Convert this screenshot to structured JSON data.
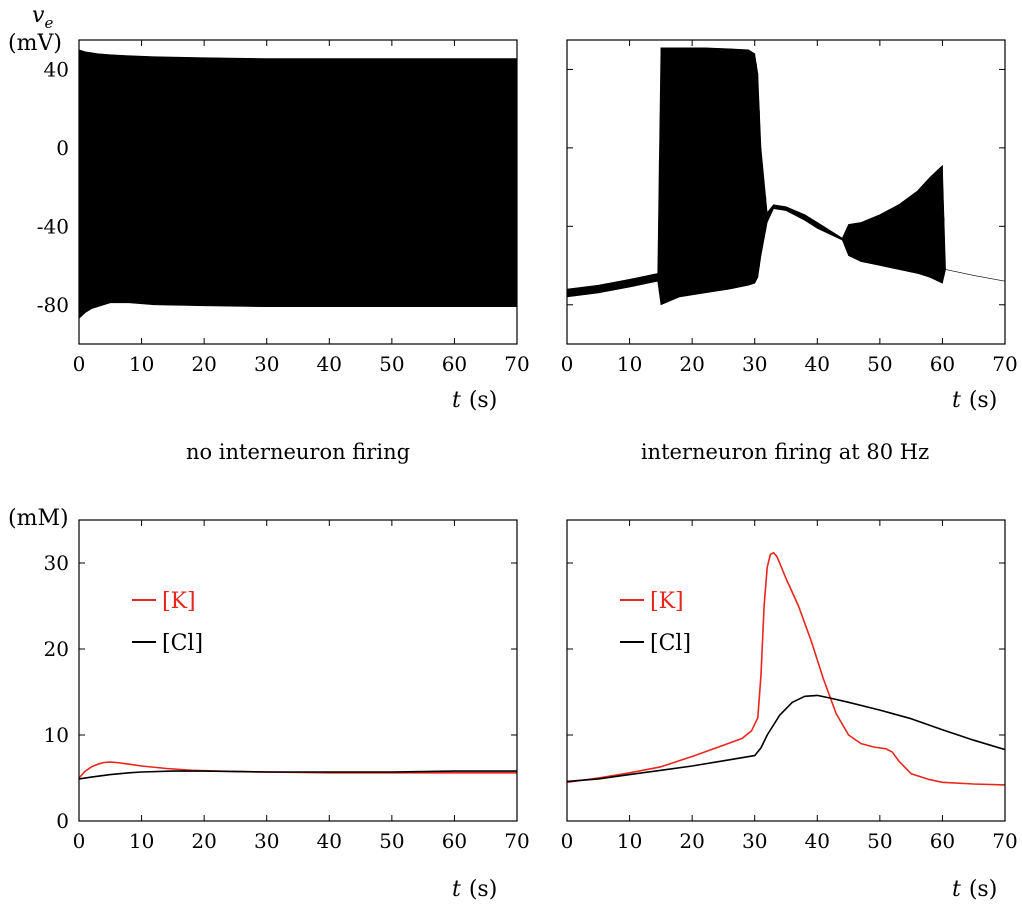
{
  "captions": {
    "left": "no interneuron firing",
    "right": "interneuron firing at 80 Hz"
  },
  "labels": {
    "voltage_var": "v",
    "voltage_sub": "e",
    "voltage_unit": "(mV)",
    "conc_unit": "(mM)",
    "time_var": "t",
    "time_unit": "(s)"
  },
  "colors": {
    "potassium": "#e8261e",
    "chloride": "#000000",
    "voltage": "#000000"
  },
  "chart_data": [
    {
      "id": "voltage-no-firing",
      "type": "line",
      "xlim": [
        0,
        70
      ],
      "ylim": [
        -100,
        55
      ],
      "xticks": [
        0,
        10,
        20,
        30,
        40,
        50,
        60,
        70
      ],
      "yticks": [
        40,
        0,
        -40,
        -80
      ],
      "series": [
        {
          "style": "envelope",
          "color": "#000000",
          "x": [
            0,
            1,
            2,
            3,
            5,
            8,
            12,
            20,
            30,
            40,
            50,
            60,
            70
          ],
          "upper": [
            50,
            49,
            48.5,
            48,
            47.5,
            47,
            46.5,
            46,
            45.5,
            45.5,
            45.5,
            45.5,
            45.5
          ],
          "lower": [
            -87,
            -84,
            -82,
            -81,
            -79,
            -79,
            -80,
            -80.5,
            -81,
            -81,
            -81,
            -81,
            -81
          ]
        }
      ]
    },
    {
      "id": "voltage-80hz",
      "type": "line",
      "xlim": [
        0,
        70
      ],
      "ylim": [
        -100,
        55
      ],
      "xticks": [
        0,
        10,
        20,
        30,
        40,
        50,
        60,
        70
      ],
      "yticks": [
        40,
        0,
        -40,
        -80
      ],
      "series": [
        {
          "style": "envelope",
          "color": "#000000",
          "x": [
            0,
            5,
            10,
            14.5,
            15,
            18,
            22,
            26,
            29,
            30,
            30.5,
            31,
            32,
            33,
            35,
            38,
            40,
            42,
            44,
            45,
            47,
            50,
            53,
            56,
            58,
            60,
            60.5,
            62,
            65,
            70
          ],
          "upper": [
            -72,
            -70,
            -67,
            -64,
            51,
            51,
            51,
            50.5,
            50,
            48,
            38,
            0,
            -33,
            -29,
            -30,
            -34,
            -38,
            -42,
            -46,
            -39,
            -38,
            -34,
            -29,
            -22,
            -15,
            -9,
            -62,
            -63,
            -65,
            -68
          ],
          "lower": [
            -76,
            -74,
            -71,
            -68,
            -80,
            -76,
            -74,
            -72,
            -70,
            -69,
            -66,
            -55,
            -38,
            -31,
            -32,
            -37,
            -41,
            -44,
            -47,
            -55,
            -58,
            -60,
            -62,
            -64,
            -66,
            -69,
            -62,
            -63,
            -65,
            -68
          ]
        }
      ]
    },
    {
      "id": "ions-no-firing",
      "type": "line",
      "xlim": [
        0,
        70
      ],
      "ylim": [
        0,
        35
      ],
      "xticks": [
        0,
        10,
        20,
        30,
        40,
        50,
        60,
        70
      ],
      "yticks": [
        0,
        10,
        20,
        30
      ],
      "legend": {
        "position": "top-left"
      },
      "series": [
        {
          "name": "[K]",
          "color": "#e8261e",
          "x": [
            0,
            1,
            2,
            3,
            4,
            5,
            6,
            8,
            10,
            14,
            18,
            22,
            30,
            40,
            50,
            60,
            70
          ],
          "y": [
            5.0,
            5.8,
            6.3,
            6.6,
            6.8,
            6.85,
            6.8,
            6.6,
            6.4,
            6.1,
            5.9,
            5.8,
            5.7,
            5.6,
            5.6,
            5.6,
            5.6
          ]
        },
        {
          "name": "[Cl]",
          "color": "#000000",
          "x": [
            0,
            2,
            5,
            8,
            10,
            15,
            20,
            30,
            40,
            50,
            60,
            70
          ],
          "y": [
            4.9,
            5.1,
            5.4,
            5.6,
            5.7,
            5.8,
            5.8,
            5.7,
            5.7,
            5.7,
            5.8,
            5.8
          ]
        }
      ]
    },
    {
      "id": "ions-80hz",
      "type": "line",
      "xlim": [
        0,
        70
      ],
      "ylim": [
        0,
        35
      ],
      "xticks": [
        0,
        10,
        20,
        30,
        40,
        50,
        60,
        70
      ],
      "yticks": [
        0,
        10,
        20,
        30
      ],
      "legend": {
        "position": "top-left"
      },
      "series": [
        {
          "name": "[K]",
          "color": "#e8261e",
          "x": [
            0,
            5,
            10,
            15,
            20,
            25,
            28,
            29.5,
            30.5,
            31,
            31.5,
            32,
            32.5,
            33,
            33.5,
            34,
            35,
            37,
            39,
            41,
            43,
            45,
            47,
            49,
            51,
            52,
            53,
            55,
            58,
            60,
            65,
            70
          ],
          "y": [
            4.5,
            5.0,
            5.6,
            6.3,
            7.5,
            8.8,
            9.6,
            10.5,
            12,
            17,
            25,
            29.5,
            31,
            31.2,
            30.8,
            30,
            28.2,
            25,
            21,
            16.5,
            12.5,
            10,
            9,
            8.6,
            8.4,
            8.0,
            7.0,
            5.5,
            4.8,
            4.5,
            4.3,
            4.2
          ]
        },
        {
          "name": "[Cl]",
          "color": "#000000",
          "x": [
            0,
            5,
            10,
            15,
            20,
            25,
            30,
            31,
            32,
            34,
            36,
            38,
            40,
            42,
            45,
            50,
            55,
            60,
            65,
            70
          ],
          "y": [
            4.6,
            4.9,
            5.4,
            5.9,
            6.4,
            7.0,
            7.6,
            8.5,
            10.0,
            12.3,
            13.8,
            14.5,
            14.6,
            14.3,
            13.8,
            12.9,
            11.9,
            10.6,
            9.4,
            8.3
          ]
        }
      ]
    }
  ]
}
